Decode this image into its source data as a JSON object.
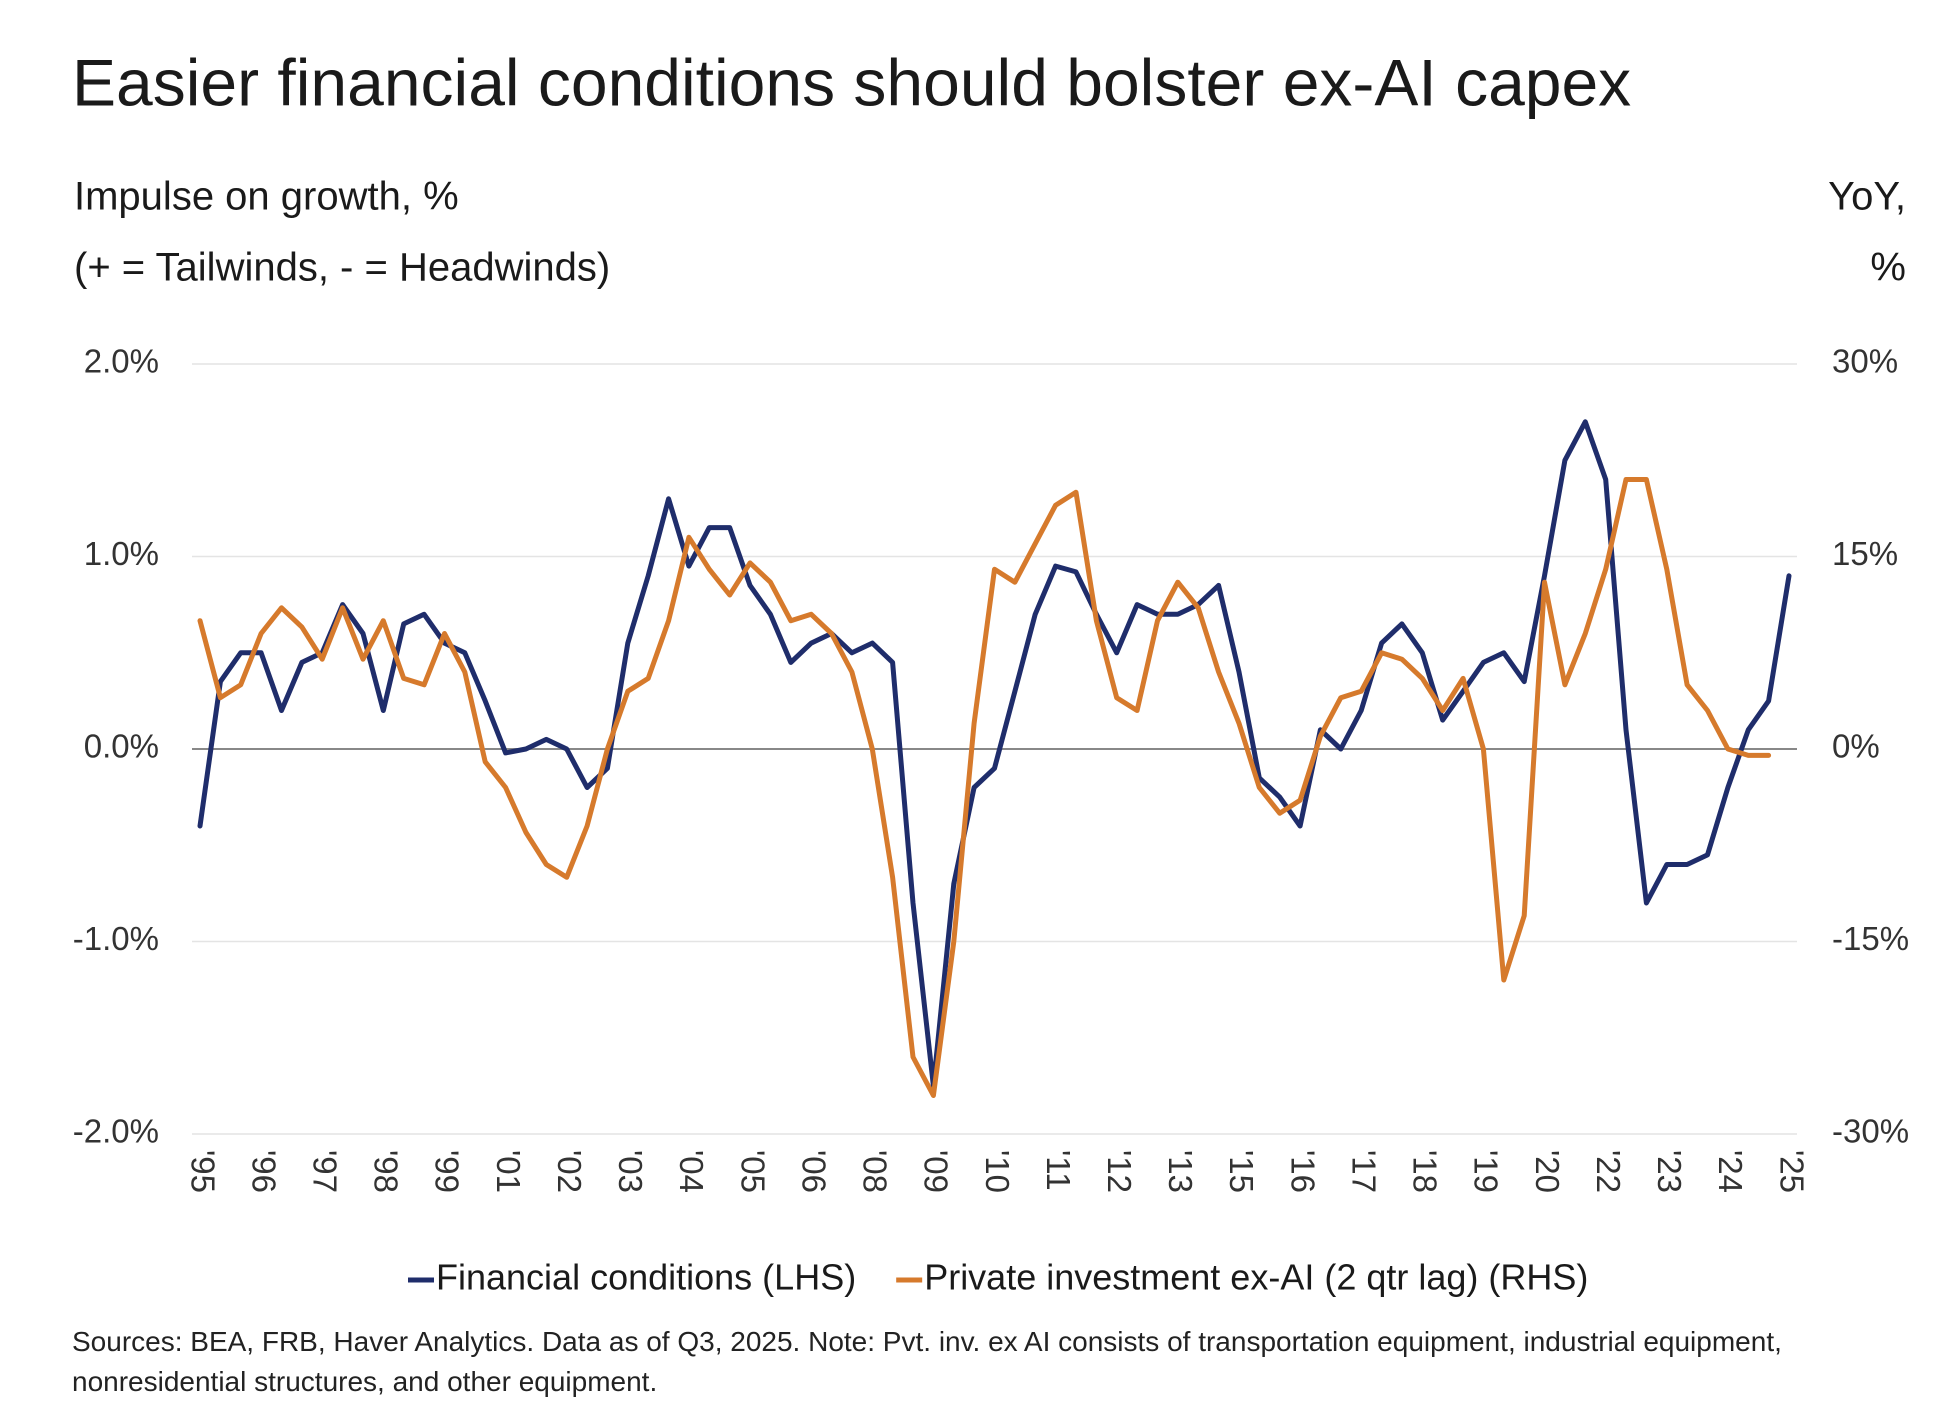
{
  "chart_data": {
    "type": "line",
    "title": "Easier financial conditions should bolster ex-AI capex",
    "y_label": "Impulse on growth, %",
    "y_label_note": "(+ = Tailwinds, - = Headwinds)",
    "y2_label": "YoY,",
    "y2_label_unit": "%",
    "categories": [
      "'95",
      null,
      null,
      "'96",
      null,
      null,
      "'97",
      null,
      null,
      "'98",
      null,
      null,
      "'99",
      null,
      null,
      "'01",
      null,
      null,
      "'02",
      null,
      null,
      "'03",
      null,
      null,
      "'04",
      null,
      null,
      "'05",
      null,
      null,
      "'06",
      null,
      null,
      "'08",
      null,
      null,
      "'09",
      null,
      null,
      "'10",
      null,
      null,
      "'11",
      null,
      null,
      "'12",
      null,
      null,
      "'13",
      null,
      null,
      "'15",
      null,
      null,
      "'16",
      null,
      null,
      "'17",
      null,
      null,
      "'18",
      null,
      null,
      "'19",
      null,
      null,
      "'20",
      null,
      null,
      "'22",
      null,
      null,
      "'23",
      null,
      null,
      "'24",
      null,
      null,
      "'25"
    ],
    "series": [
      {
        "name": "Financial conditions (LHS)",
        "color": "#1f2d6b",
        "axis": "y",
        "values": [
          -0.4,
          0.35,
          0.5,
          0.5,
          0.2,
          0.45,
          0.5,
          0.75,
          0.6,
          0.2,
          0.65,
          0.7,
          0.55,
          0.5,
          0.25,
          -0.02,
          0.0,
          0.05,
          0.0,
          -0.2,
          -0.1,
          0.55,
          0.9,
          1.3,
          0.95,
          1.15,
          1.15,
          0.85,
          0.7,
          0.45,
          0.55,
          0.6,
          0.5,
          0.55,
          0.45,
          -0.8,
          -1.75,
          -0.7,
          -0.2,
          -0.1,
          0.3,
          0.7,
          0.95,
          0.92,
          0.7,
          0.5,
          0.75,
          0.7,
          0.7,
          0.75,
          0.85,
          0.4,
          -0.15,
          -0.25,
          -0.4,
          0.1,
          0.0,
          0.2,
          0.55,
          0.65,
          0.5,
          0.15,
          0.3,
          0.45,
          0.5,
          0.35,
          0.9,
          1.5,
          1.7,
          1.4,
          0.1,
          -0.8,
          -0.6,
          -0.6,
          -0.55,
          -0.2,
          0.1,
          0.25,
          0.9
        ]
      },
      {
        "name": "Private investment ex-AI (2 qtr lag) (RHS)",
        "color": "#d67a2c",
        "axis": "y2",
        "values": [
          10,
          4,
          5,
          9,
          11,
          9.5,
          7,
          11,
          7,
          10,
          5.5,
          5,
          9,
          6,
          -1,
          -3,
          -6.5,
          -9,
          -10,
          -6,
          0,
          4.5,
          5.5,
          10,
          16.5,
          14,
          12,
          14.5,
          13,
          10,
          10.5,
          9,
          6,
          0,
          -10,
          -24,
          -27,
          -15,
          2,
          14,
          13,
          16,
          19,
          20,
          10,
          4,
          3,
          10,
          13,
          11,
          6,
          2,
          -3,
          -5,
          -4,
          1,
          4,
          4.5,
          7.5,
          7,
          5.5,
          3,
          5.5,
          0,
          -18,
          -13,
          13,
          5,
          9,
          14,
          21,
          21,
          14,
          5,
          3,
          0,
          -0.5,
          -0.5,
          null
        ]
      }
    ],
    "ylim": [
      -2,
      2
    ],
    "yticks": [
      {
        "value": -2,
        "label": "-2.0%"
      },
      {
        "value": -1,
        "label": "-1.0%"
      },
      {
        "value": 0,
        "label": "0.0%"
      },
      {
        "value": 1,
        "label": "1.0%"
      },
      {
        "value": 2,
        "label": "2.0%"
      }
    ],
    "y2lim": [
      -30,
      30
    ],
    "y2ticks": [
      {
        "value": -30,
        "label": "-30%"
      },
      {
        "value": -15,
        "label": "-15%"
      },
      {
        "value": 0,
        "label": "0%"
      },
      {
        "value": 15,
        "label": "15%"
      },
      {
        "value": 30,
        "label": "30%"
      }
    ],
    "grid": true,
    "legend": "bottom",
    "footnote": "Sources: BEA, FRB, Haver Analytics. Data as of Q3, 2025. Note: Pvt. inv. ex AI consists of transportation equipment, industrial equipment, nonresidential structures, and other equipment."
  }
}
